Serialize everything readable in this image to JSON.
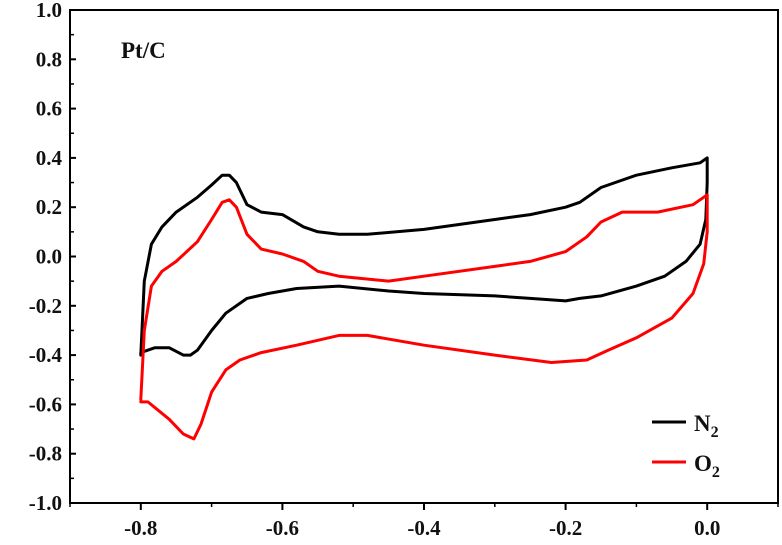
{
  "chart_data": {
    "type": "line",
    "title": "Pt/C",
    "xlabel": "",
    "ylabel": "",
    "xlim": [
      -0.9,
      0.1
    ],
    "ylim": [
      -1.0,
      1.0
    ],
    "xticks": [
      -0.8,
      -0.6,
      -0.4,
      -0.2,
      0.0
    ],
    "xtick_labels": [
      "-0.8",
      "-0.6",
      "-0.4",
      "-0.2",
      "0.0"
    ],
    "yticks": [
      1.0,
      0.8,
      0.6,
      0.4,
      0.2,
      0.0,
      -0.2,
      -0.4,
      -0.6,
      -0.8,
      -1.0
    ],
    "ytick_labels": [
      "1.0",
      "0.8",
      "0.6",
      "0.4",
      "0.2",
      "0.0",
      "-0.2",
      "-0.4",
      "-0.6",
      "-0.8",
      "-1.0"
    ],
    "grid": false,
    "legend_position": "bottom-right",
    "series": [
      {
        "name": "N",
        "subscript": "2",
        "color": "#000000",
        "x": [
          -0.8,
          -0.795,
          -0.785,
          -0.77,
          -0.75,
          -0.72,
          -0.7,
          -0.685,
          -0.675,
          -0.665,
          -0.65,
          -0.63,
          -0.6,
          -0.57,
          -0.55,
          -0.52,
          -0.48,
          -0.4,
          -0.3,
          -0.25,
          -0.2,
          -0.18,
          -0.15,
          -0.1,
          -0.05,
          -0.01,
          0.0,
          0.0,
          -0.002,
          -0.01,
          -0.03,
          -0.06,
          -0.1,
          -0.15,
          -0.18,
          -0.2,
          -0.25,
          -0.3,
          -0.4,
          -0.45,
          -0.52,
          -0.58,
          -0.62,
          -0.65,
          -0.68,
          -0.7,
          -0.72,
          -0.73,
          -0.74,
          -0.76,
          -0.78,
          -0.8,
          -0.8
        ],
        "y": [
          -0.4,
          -0.1,
          0.05,
          0.12,
          0.18,
          0.24,
          0.29,
          0.33,
          0.33,
          0.3,
          0.21,
          0.18,
          0.17,
          0.12,
          0.1,
          0.09,
          0.09,
          0.11,
          0.15,
          0.17,
          0.2,
          0.22,
          0.28,
          0.33,
          0.36,
          0.38,
          0.4,
          0.3,
          0.15,
          0.05,
          -0.02,
          -0.08,
          -0.12,
          -0.16,
          -0.17,
          -0.18,
          -0.17,
          -0.16,
          -0.15,
          -0.14,
          -0.12,
          -0.13,
          -0.15,
          -0.17,
          -0.23,
          -0.3,
          -0.38,
          -0.4,
          -0.4,
          -0.37,
          -0.37,
          -0.39,
          -0.4
        ]
      },
      {
        "name": "O",
        "subscript": "2",
        "color": "#ff0000",
        "x": [
          -0.8,
          -0.795,
          -0.785,
          -0.77,
          -0.75,
          -0.72,
          -0.7,
          -0.685,
          -0.675,
          -0.665,
          -0.65,
          -0.63,
          -0.6,
          -0.57,
          -0.55,
          -0.52,
          -0.45,
          -0.4,
          -0.3,
          -0.25,
          -0.2,
          -0.17,
          -0.15,
          -0.12,
          -0.07,
          -0.02,
          0.0,
          0.0,
          -0.005,
          -0.02,
          -0.05,
          -0.1,
          -0.14,
          -0.17,
          -0.22,
          -0.3,
          -0.4,
          -0.48,
          -0.52,
          -0.58,
          -0.63,
          -0.66,
          -0.68,
          -0.7,
          -0.715,
          -0.725,
          -0.74,
          -0.76,
          -0.79,
          -0.8
        ],
        "y": [
          -0.58,
          -0.3,
          -0.12,
          -0.06,
          -0.02,
          0.06,
          0.15,
          0.22,
          0.23,
          0.2,
          0.09,
          0.03,
          0.01,
          -0.02,
          -0.06,
          -0.08,
          -0.1,
          -0.08,
          -0.04,
          -0.02,
          0.02,
          0.08,
          0.14,
          0.18,
          0.18,
          0.21,
          0.25,
          0.1,
          -0.03,
          -0.15,
          -0.25,
          -0.33,
          -0.38,
          -0.42,
          -0.43,
          -0.4,
          -0.36,
          -0.32,
          -0.32,
          -0.36,
          -0.39,
          -0.42,
          -0.46,
          -0.55,
          -0.68,
          -0.74,
          -0.72,
          -0.66,
          -0.59,
          -0.59
        ]
      }
    ]
  }
}
